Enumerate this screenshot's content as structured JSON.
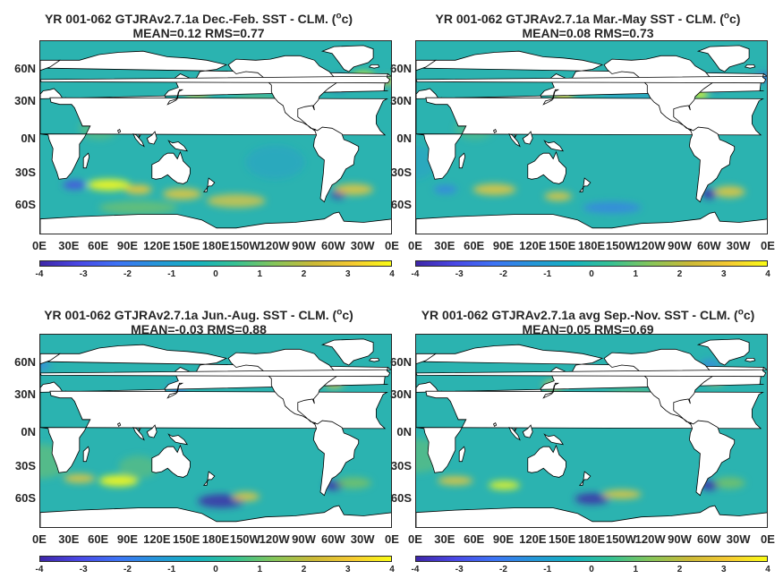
{
  "colors": {
    "ocean_mid": "#2bb3b0",
    "land": "#ffffff",
    "cold": "#3e26a8",
    "warm": "#f9fb15"
  },
  "axes": {
    "lat_labels": [
      "60N",
      "30N",
      "0N",
      "30S",
      "60S"
    ],
    "lon_labels": [
      "0E",
      "30E",
      "60E",
      "90E",
      "120E",
      "150E",
      "180E",
      "150W",
      "120W",
      "90W",
      "60W",
      "30W",
      "0E"
    ],
    "colorbar_ticks": [
      "-4",
      "-3",
      "-2",
      "-1",
      "0",
      "1",
      "2",
      "3",
      "4"
    ],
    "colorbar_range": [
      -4,
      4
    ]
  },
  "panels": [
    {
      "id": "djf",
      "title_main": "YR 001-062 GTJRAv2.7.1a  Dec.-Feb. SST - CLM. (",
      "title_unit_sup": "o",
      "title_unit_end": "c)",
      "stats": "MEAN=0.12   RMS=0.77"
    },
    {
      "id": "mam",
      "title_main": "YR 001-062 GTJRAv2.7.1a Mar.-May SST - CLM. (",
      "title_unit_sup": "o",
      "title_unit_end": "c)",
      "stats": "MEAN=0.08   RMS=0.73"
    },
    {
      "id": "jja",
      "title_main": "YR 001-062 GTJRAv2.7.1a Jun.-Aug. SST - CLM. (",
      "title_unit_sup": "o",
      "title_unit_end": "c)",
      "stats": "MEAN=-0.03   RMS=0.88"
    },
    {
      "id": "son",
      "title_main": "YR 001-062 GTJRAv2.7.1a avg Sep.-Nov. SST - CLM. (",
      "title_unit_sup": "o",
      "title_unit_end": "c)",
      "stats": "MEAN=0.05   RMS=0.69"
    }
  ]
}
